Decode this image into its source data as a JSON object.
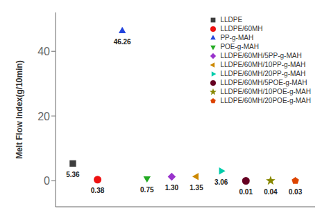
{
  "chart_data": {
    "type": "scatter",
    "ylabel": "Melt Flow Index(g/10min)",
    "xlim": [
      0.3,
      10.8
    ],
    "ylim": [
      -8,
      52
    ],
    "yticks": [
      0,
      20,
      40
    ],
    "grid": false,
    "legend": "upper right",
    "tick_labels": "y",
    "data_labels": true,
    "series": [
      {
        "name": "LLDPE",
        "color": "#3d3d3d",
        "marker": "square",
        "x": [
          1
        ],
        "values": [
          5.36
        ],
        "value_labels": [
          "5.36"
        ]
      },
      {
        "name": "LLDPE/60MH",
        "color": "#ee1111",
        "marker": "circle",
        "x": [
          2
        ],
        "values": [
          0.38
        ],
        "value_labels": [
          "0.38"
        ]
      },
      {
        "name": "PP-g-MAH",
        "color": "#2244dd",
        "marker": "triangle-up",
        "x": [
          3
        ],
        "values": [
          46.26
        ],
        "value_labels": [
          "46.26"
        ]
      },
      {
        "name": "POE-g-MAH",
        "color": "#22aa22",
        "marker": "triangle-down",
        "x": [
          4
        ],
        "values": [
          0.75
        ],
        "value_labels": [
          "0.75"
        ]
      },
      {
        "name": "LLDPE/60MH/5PP-g-MAH",
        "color": "#9933cc",
        "marker": "diamond",
        "x": [
          5
        ],
        "values": [
          1.3
        ],
        "value_labels": [
          "1.30"
        ]
      },
      {
        "name": "LLDPE/60MH/10PP-g-MAH",
        "color": "#cc8800",
        "marker": "triangle-left",
        "x": [
          6
        ],
        "values": [
          1.35
        ],
        "value_labels": [
          "1.35"
        ]
      },
      {
        "name": "LLDPE/60MH/20PP-g-MAH",
        "color": "#00ccaa",
        "marker": "triangle-right",
        "x": [
          7
        ],
        "values": [
          3.06
        ],
        "value_labels": [
          "3.06"
        ]
      },
      {
        "name": "LLDPE/60MH/5POE-g-MAH",
        "color": "#660022",
        "marker": "circle",
        "x": [
          8
        ],
        "values": [
          0.01
        ],
        "value_labels": [
          "0.01"
        ]
      },
      {
        "name": "LLDPE/60MH/10POE-g-MAH",
        "color": "#888800",
        "marker": "star",
        "x": [
          9
        ],
        "values": [
          0.04
        ],
        "value_labels": [
          "0.04"
        ]
      },
      {
        "name": "LLDPE/60MH/20POE-g-MAH",
        "color": "#dd4400",
        "marker": "pentagon",
        "x": [
          10
        ],
        "values": [
          0.03
        ],
        "value_labels": [
          "0.03"
        ]
      }
    ]
  }
}
